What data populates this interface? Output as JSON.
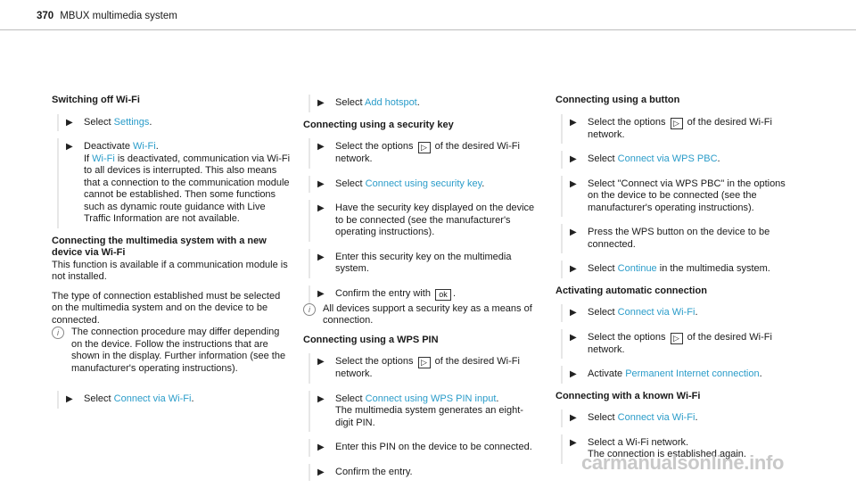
{
  "header": {
    "page_number": "370",
    "title": "MBUX multimedia system"
  },
  "col1": {
    "h1": "Switching off Wi-Fi",
    "s1": {
      "pre": "Select ",
      "link": "Settings",
      "post": "."
    },
    "s2": {
      "pre": "Deactivate ",
      "link": "Wi-Fi",
      "post": ".",
      "l2pre": "If ",
      "l2link": "Wi-Fi",
      "l2post": " is deactivated, communication via Wi-Fi to all devices is interrupted. This also means that a connection to the communication module cannot be established. Then some functions such as dynamic route guidance with Live Traffic Information are not available."
    },
    "h2": "Connecting the multimedia system with a new device via Wi-Fi",
    "p1": "This function is available if a communication module is not installed.",
    "p2": "The type of connection established must be selected on the multimedia system and on the device to be connected.",
    "note": "The connection procedure may differ depending on the device. Follow the instructions that are shown in the display. Further information (see the manufacturer's operating instructions).",
    "s3": {
      "pre": "Select ",
      "link": "Connect via Wi-Fi",
      "post": "."
    }
  },
  "col2": {
    "s1": {
      "pre": "Select ",
      "link": "Add hotspot",
      "post": "."
    },
    "h1": "Connecting using a security key",
    "s2": {
      "pre": "Select the options ",
      "post": " of the desired Wi-Fi network."
    },
    "s3": {
      "pre": "Select ",
      "link": "Connect using security key",
      "post": "."
    },
    "s4": "Have the security key displayed on the device to be connected (see the manufacturer's operating instructions).",
    "s5": "Enter this security key on the multimedia system.",
    "s6": {
      "pre": "Confirm the entry with ",
      "post": "."
    },
    "note": "All devices support a security key as a means of connection.",
    "h2": "Connecting using a WPS PIN",
    "s7": {
      "pre": "Select the options ",
      "post": " of the desired Wi-Fi network."
    },
    "s8": {
      "pre": "Select ",
      "link": "Connect using WPS PIN input",
      "post": ".",
      "l2": "The multimedia system generates an eight-digit PIN."
    },
    "s9": "Enter this PIN on the device to be connected.",
    "s10": "Confirm the entry."
  },
  "col3": {
    "h1": "Connecting using a button",
    "s1": {
      "pre": "Select the options ",
      "post": " of the desired Wi-Fi network."
    },
    "s2": {
      "pre": "Select ",
      "link": "Connect via WPS PBC",
      "post": "."
    },
    "s3": "Select \"Connect via WPS PBC\" in the options on the device to be connected (see the manufacturer's operating instructions).",
    "s4": "Press the WPS button on the device to be connected.",
    "s5": {
      "pre": "Select ",
      "link": "Continue",
      "post": " in the multimedia system."
    },
    "h2": "Activating automatic connection",
    "s6": {
      "pre": "Select ",
      "link": "Connect via Wi-Fi",
      "post": "."
    },
    "s7": {
      "pre": "Select the options ",
      "post": " of the desired Wi-Fi network."
    },
    "s8": {
      "pre": "Activate ",
      "link": "Permanent Internet connection",
      "post": "."
    },
    "h3": "Connecting with a known Wi-Fi",
    "s9": {
      "pre": "Select ",
      "link": "Connect via Wi-Fi",
      "post": "."
    },
    "s10": {
      "l1": "Select a Wi-Fi network.",
      "l2": "The connection is established again."
    }
  },
  "keys": {
    "options_symbol": "▷",
    "ok_symbol": "ok"
  },
  "footer": {
    "watermark": "carmanualsonline.info"
  },
  "colors": {
    "link": "#2a9cc9",
    "text": "#1a1a1a"
  }
}
